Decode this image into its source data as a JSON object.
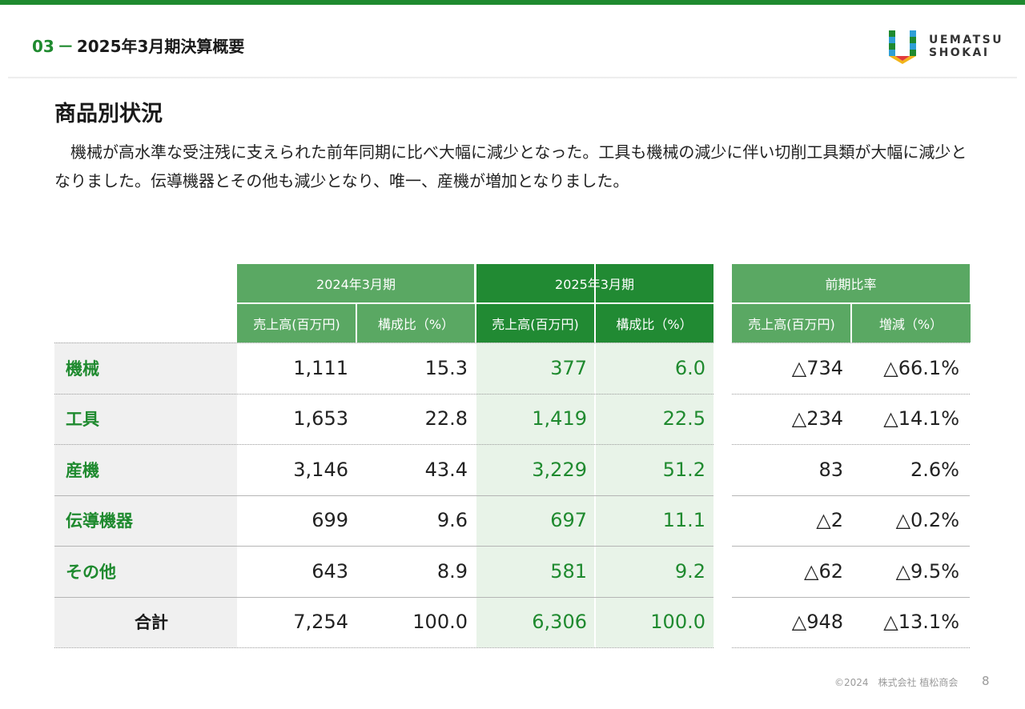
{
  "header": {
    "section_num": "03",
    "section_dash": "－",
    "section_title": "2025年3月期決算概要",
    "logo_line1": "UEMATSU",
    "logo_line2": "SHOKAI"
  },
  "page": {
    "heading": "商品別状況",
    "intro": "機械が高水準な受注残に支えられた前年同期に比べ大幅に減少となった。工具も機械の減少に伴い切削工具類が大幅に減少となりました。伝導機器とその他も減少となり、唯一、産機が増加となりました。"
  },
  "table": {
    "groups": [
      "2024年3月期",
      "2025年3月期",
      "前期比率"
    ],
    "sub_headers": [
      "売上高(百万円)",
      "構成比（%）",
      "売上高(百万円)",
      "構成比（%）",
      "売上高(百万円)",
      "増減（%）"
    ],
    "rows": [
      {
        "label": "機械",
        "v": [
          "1,111",
          "15.3",
          "377",
          "6.0",
          "△734",
          "△66.1%"
        ]
      },
      {
        "label": "工具",
        "v": [
          "1,653",
          "22.8",
          "1,419",
          "22.5",
          "△234",
          "△14.1%"
        ]
      },
      {
        "label": "産機",
        "v": [
          "3,146",
          "43.4",
          "3,229",
          "51.2",
          "83",
          "2.6%"
        ]
      },
      {
        "label": "伝導機器",
        "v": [
          "699",
          "9.6",
          "697",
          "11.1",
          "△2",
          "△0.2%"
        ]
      },
      {
        "label": "その他",
        "v": [
          "643",
          "8.9",
          "581",
          "9.2",
          "△62",
          "△9.5%"
        ]
      },
      {
        "label": "合計",
        "v": [
          "7,254",
          "100.0",
          "6,306",
          "100.0",
          "△948",
          "△13.1%"
        ]
      }
    ]
  },
  "footer": {
    "copyright": "©2024　株式会社 植松商会",
    "page_number": "8"
  },
  "colors": {
    "accent": "#1f8a2f",
    "header_light": "#5aa863",
    "header_dark": "#218a33",
    "highlight_bg": "#e8f3e8",
    "label_bg": "#f0f0f0"
  }
}
